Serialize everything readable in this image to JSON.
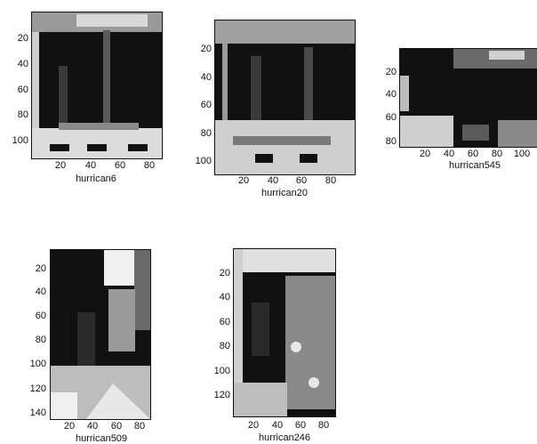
{
  "panels": [
    {
      "name": "hurrican6",
      "xlabel": "hurrican6",
      "yticks": [
        "20",
        "40",
        "60",
        "80",
        "100"
      ],
      "xticks": [
        "20",
        "40",
        "60",
        "80"
      ]
    },
    {
      "name": "hurrican20",
      "xlabel": "hurrican20",
      "yticks": [
        "20",
        "40",
        "60",
        "80",
        "100"
      ],
      "xticks": [
        "20",
        "40",
        "60",
        "80"
      ]
    },
    {
      "name": "hurrican545",
      "xlabel": "hurrican545",
      "yticks": [
        "20",
        "40",
        "60",
        "80"
      ],
      "xticks": [
        "20",
        "40",
        "60",
        "80",
        "100"
      ]
    },
    {
      "name": "hurrican509",
      "xlabel": "hurrican509",
      "yticks": [
        "20",
        "40",
        "60",
        "80",
        "100",
        "120",
        "140"
      ],
      "xticks": [
        "20",
        "40",
        "60",
        "80"
      ]
    },
    {
      "name": "hurrican246",
      "xlabel": "hurrican246",
      "yticks": [
        "20",
        "40",
        "60",
        "80",
        "100",
        "120"
      ],
      "xticks": [
        "20",
        "40",
        "60",
        "80"
      ]
    }
  ],
  "colors": {
    "image_dark": "#111111",
    "image_light": "#e8e8e8",
    "axis": "#111111"
  }
}
